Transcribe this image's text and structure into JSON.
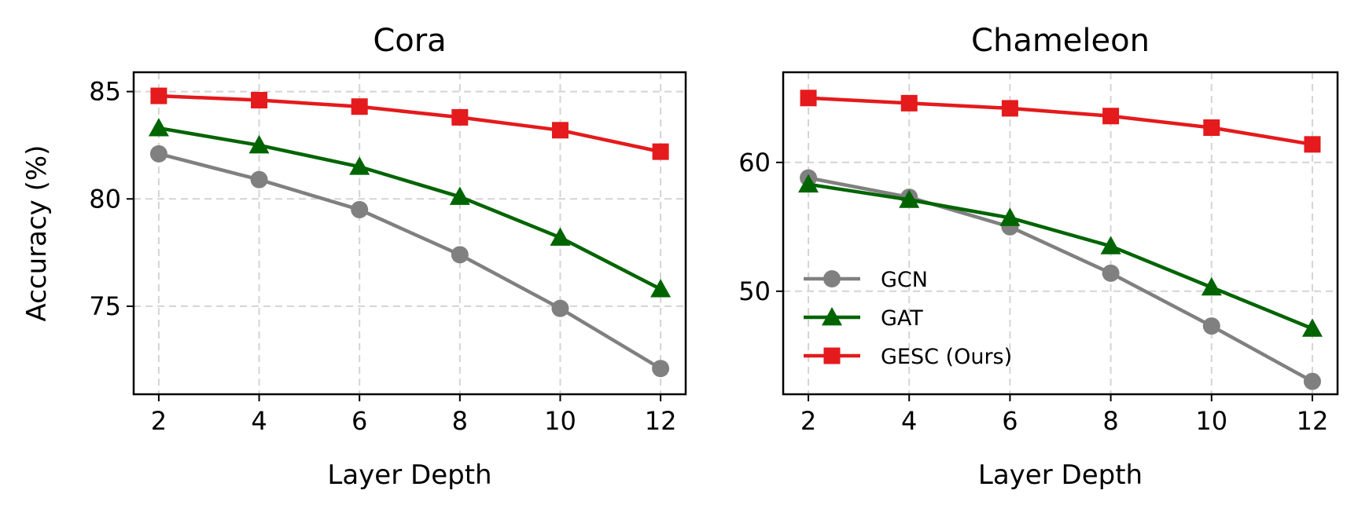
{
  "chart_data": [
    {
      "type": "line",
      "title": "Cora",
      "xlabel": "Layer Depth",
      "ylabel": "Accuracy (%)",
      "x": [
        2,
        4,
        6,
        8,
        10,
        12
      ],
      "xticks": [
        2,
        4,
        6,
        8,
        10,
        12
      ],
      "yticks": [
        75,
        80,
        85
      ],
      "xlim": [
        1.5,
        12.5
      ],
      "ylim": [
        70.9,
        85.9
      ],
      "grid": true,
      "series": [
        {
          "name": "GCN",
          "color": "#808080",
          "marker": "circle",
          "values": [
            82.1,
            80.9,
            79.5,
            77.4,
            74.9,
            72.1
          ]
        },
        {
          "name": "GAT",
          "color": "#006400",
          "marker": "triangle",
          "values": [
            83.3,
            82.5,
            81.5,
            80.1,
            78.2,
            75.8
          ]
        },
        {
          "name": "GESC (Ours)",
          "color": "#e41a1c",
          "marker": "square",
          "values": [
            84.8,
            84.6,
            84.3,
            83.8,
            83.2,
            82.2
          ]
        }
      ]
    },
    {
      "type": "line",
      "title": "Chameleon",
      "xlabel": "Layer Depth",
      "ylabel": "",
      "x": [
        2,
        4,
        6,
        8,
        10,
        12
      ],
      "xticks": [
        2,
        4,
        6,
        8,
        10,
        12
      ],
      "yticks": [
        50,
        60
      ],
      "xlim": [
        1.5,
        12.5
      ],
      "ylim": [
        42.0,
        67.0
      ],
      "grid": true,
      "legend": "lower-left",
      "series": [
        {
          "name": "GCN",
          "color": "#808080",
          "marker": "circle",
          "values": [
            58.8,
            57.3,
            55.0,
            51.4,
            47.3,
            43.0
          ]
        },
        {
          "name": "GAT",
          "color": "#006400",
          "marker": "triangle",
          "values": [
            58.3,
            57.1,
            55.7,
            53.5,
            50.3,
            47.1
          ]
        },
        {
          "name": "GESC (Ours)",
          "color": "#e41a1c",
          "marker": "square",
          "values": [
            65.0,
            64.6,
            64.2,
            63.6,
            62.7,
            61.4
          ]
        }
      ]
    }
  ]
}
